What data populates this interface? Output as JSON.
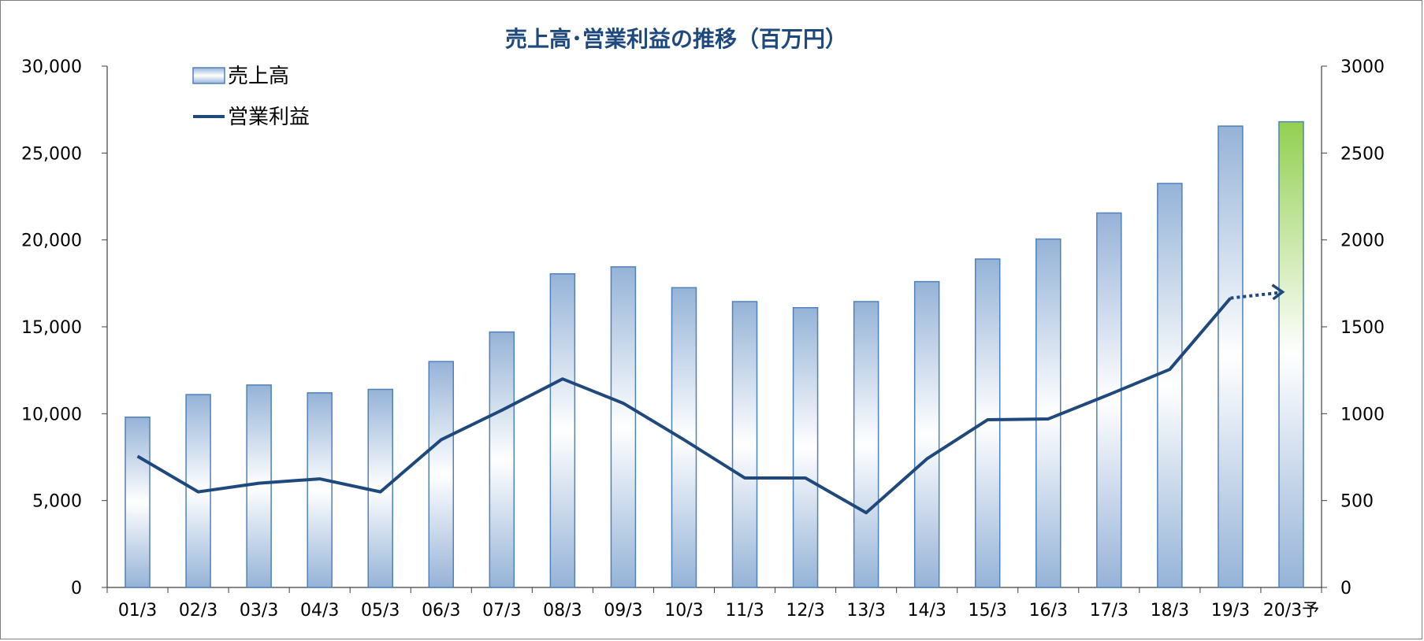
{
  "chart_data": {
    "type": "bar",
    "title": "売上高･営業利益の推移（百万円）",
    "categories": [
      "01/3",
      "02/3",
      "03/3",
      "04/3",
      "05/3",
      "06/3",
      "07/3",
      "08/3",
      "09/3",
      "10/3",
      "11/3",
      "12/3",
      "13/3",
      "14/3",
      "15/3",
      "16/3",
      "17/3",
      "18/3",
      "19/3",
      "20/3予"
    ],
    "series": [
      {
        "name": "売上高",
        "kind": "bar",
        "axis": "left",
        "values": [
          9800,
          11100,
          11650,
          11200,
          11400,
          13000,
          14700,
          18050,
          18450,
          17250,
          16450,
          16100,
          16450,
          17600,
          18900,
          20050,
          21550,
          23250,
          26550,
          26800
        ]
      },
      {
        "name": "営業利益",
        "kind": "line",
        "axis": "right",
        "values": [
          755,
          550,
          600,
          625,
          550,
          850,
          1020,
          1200,
          1060,
          850,
          630,
          630,
          430,
          740,
          965,
          970,
          1110,
          1255,
          1665,
          null
        ],
        "forecast_arrow_target": 1700
      }
    ],
    "y_left": {
      "ylim": [
        0,
        30000
      ],
      "ticks": [
        "0",
        "5,000",
        "10,000",
        "15,000",
        "20,000",
        "25,000",
        "30,000"
      ]
    },
    "y_right": {
      "ylim": [
        0,
        3000
      ],
      "ticks": [
        "0",
        "500",
        "1000",
        "1500",
        "2000",
        "2500",
        "3000"
      ]
    },
    "legend": {
      "placement": "top-left"
    },
    "grid": false,
    "colors": {
      "bar_edge": "#4f81bd",
      "bar_dark": "#95b3d7",
      "bar_light": "#ffffff",
      "forecast_top": "#92d050",
      "line": "#1f497d",
      "title": "#1f497d",
      "axis": "#404040"
    }
  }
}
